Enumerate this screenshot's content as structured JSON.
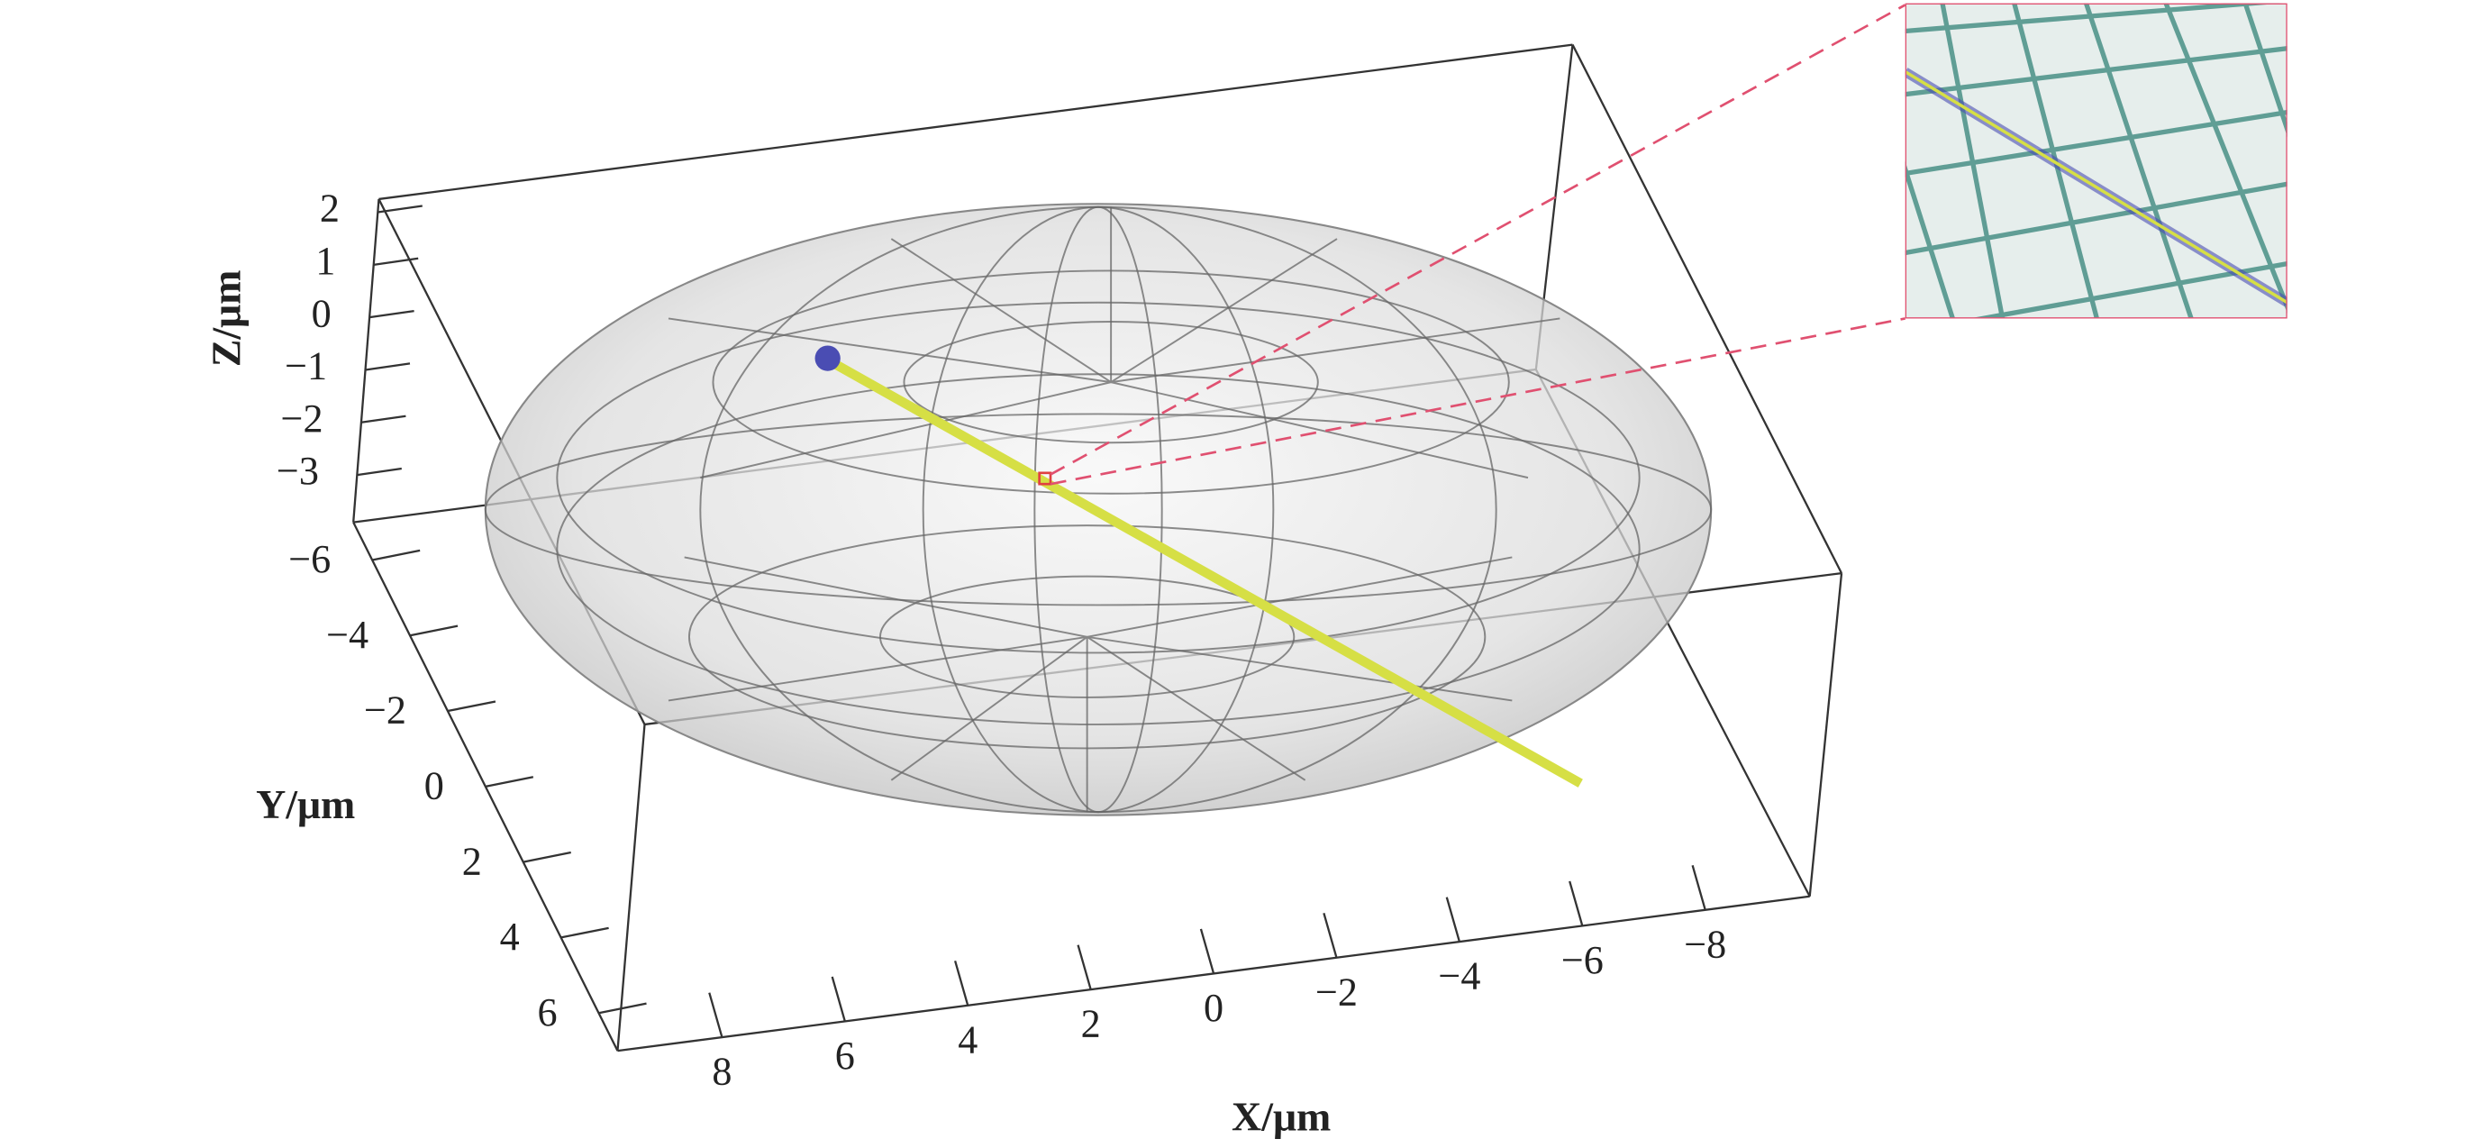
{
  "chart_data": {
    "type": "surface3d",
    "xlabel": "X/μm",
    "ylabel": "Y/μm",
    "zlabel": "Z/μm",
    "xlim": [
      9.7,
      -9.7
    ],
    "ylim": [
      -7,
      7
    ],
    "zlim": [
      -3.9,
      2.25
    ],
    "xticks": [
      8,
      6,
      4,
      2,
      0,
      {
        "value": -2,
        "label": "−2"
      },
      {
        "value": -4,
        "label": "−4"
      },
      {
        "value": -6,
        "label": "−6"
      },
      {
        "value": -8,
        "label": "−8"
      }
    ],
    "yticks": [
      {
        "value": -6,
        "label": "−6"
      },
      {
        "value": -4,
        "label": "−4"
      },
      {
        "value": -2,
        "label": "−2"
      },
      0,
      2,
      4,
      6
    ],
    "zticks": [
      2,
      1,
      0,
      {
        "value": -1,
        "label": "−1"
      },
      {
        "value": -2,
        "label": "−2"
      },
      {
        "value": -3,
        "label": "−3"
      }
    ]
  }
}
